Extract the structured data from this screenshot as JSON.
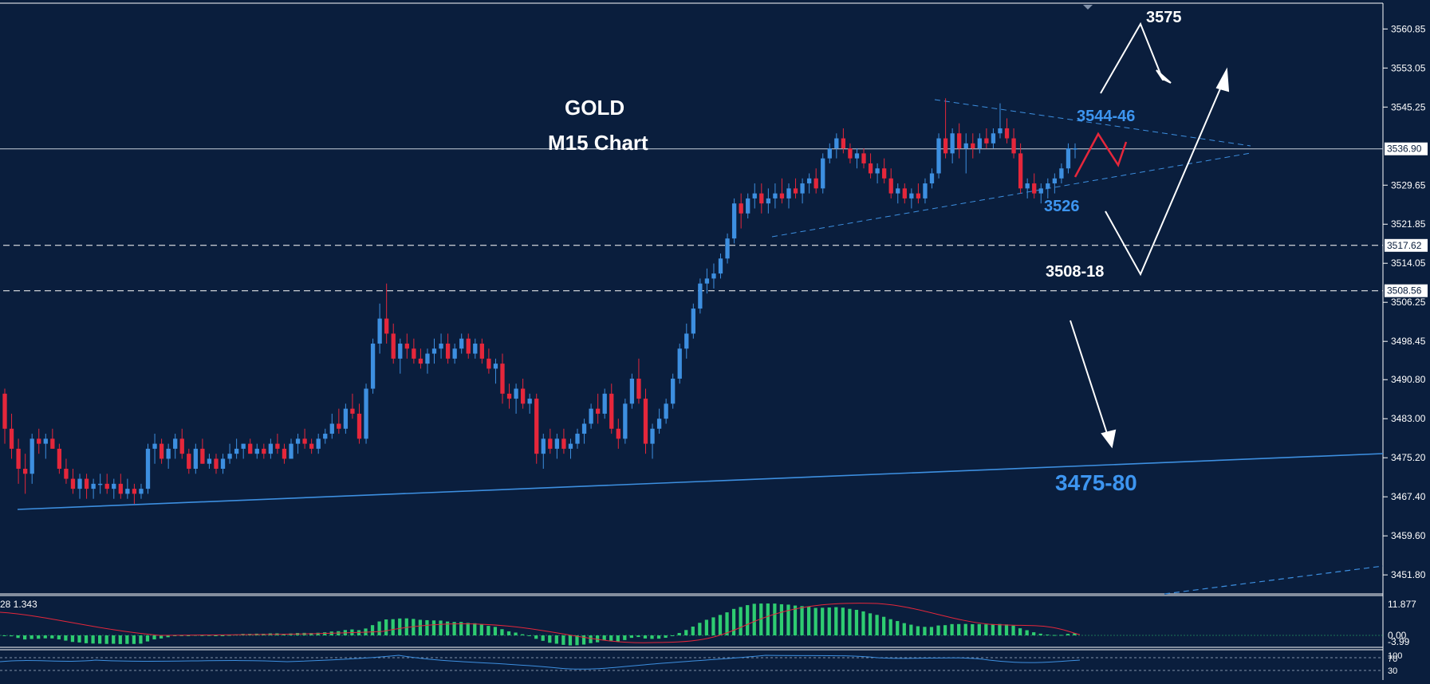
{
  "chart_data": {
    "type": "candlestick",
    "symbol": "GOLD",
    "timeframe": "M15 Chart",
    "ylim": [
      3448.0,
      3566.0
    ],
    "y_ticks": [
      "3560.85",
      "3553.05",
      "3545.25",
      "3529.65",
      "3521.85",
      "3514.05",
      "3506.25",
      "3498.45",
      "3490.80",
      "3483.00",
      "3475.20",
      "3467.40",
      "3459.60",
      "3451.80"
    ],
    "current_price": "3536.90",
    "levels": [
      {
        "label": "3517.62",
        "value": 3517.62
      },
      {
        "label": "3508.56",
        "value": 3508.56
      }
    ],
    "annotations": {
      "target_top": "3575",
      "resistance": "3544-46",
      "support": "3526",
      "pullback_zone": "3508-18",
      "major_support": "3475-80"
    },
    "candles": [
      [
        3488,
        3489,
        3478,
        3481
      ],
      [
        3481,
        3484,
        3475,
        3477
      ],
      [
        3477,
        3479,
        3470,
        3473
      ],
      [
        3473,
        3476,
        3468,
        3472
      ],
      [
        3472,
        3480,
        3470,
        3479
      ],
      [
        3479,
        3481,
        3476,
        3478
      ],
      [
        3478,
        3480,
        3475,
        3479
      ],
      [
        3479,
        3481,
        3477,
        3477
      ],
      [
        3477,
        3478,
        3472,
        3473
      ],
      [
        3473,
        3475,
        3470,
        3471
      ],
      [
        3471,
        3473,
        3468,
        3469
      ],
      [
        3469,
        3472,
        3467,
        3471
      ],
      [
        3471,
        3472,
        3467,
        3469
      ],
      [
        3469,
        3471,
        3467,
        3470
      ],
      [
        3470,
        3472,
        3468,
        3470
      ],
      [
        3470,
        3472,
        3468,
        3469
      ],
      [
        3469,
        3471,
        3467,
        3470
      ],
      [
        3470,
        3472,
        3467,
        3468
      ],
      [
        3468,
        3471,
        3467,
        3469
      ],
      [
        3469,
        3470,
        3466,
        3468
      ],
      [
        3468,
        3470,
        3467,
        3469
      ],
      [
        3469,
        3478,
        3468,
        3477
      ],
      [
        3477,
        3480,
        3474,
        3478
      ],
      [
        3478,
        3479,
        3474,
        3475
      ],
      [
        3475,
        3478,
        3473,
        3477
      ],
      [
        3477,
        3480,
        3475,
        3479
      ],
      [
        3479,
        3481,
        3475,
        3476
      ],
      [
        3476,
        3477,
        3472,
        3473
      ],
      [
        3473,
        3478,
        3472,
        3477
      ],
      [
        3477,
        3479,
        3474,
        3474
      ],
      [
        3474,
        3476,
        3473,
        3475
      ],
      [
        3475,
        3476,
        3472,
        3473
      ],
      [
        3473,
        3476,
        3472,
        3475
      ],
      [
        3475,
        3478,
        3474,
        3476
      ],
      [
        3476,
        3479,
        3475,
        3477
      ],
      [
        3477,
        3478,
        3475,
        3478
      ],
      [
        3478,
        3479,
        3476,
        3476
      ],
      [
        3476,
        3478,
        3475,
        3477
      ],
      [
        3477,
        3478,
        3475,
        3476
      ],
      [
        3476,
        3479,
        3475,
        3478
      ],
      [
        3478,
        3480,
        3476,
        3477
      ],
      [
        3477,
        3478,
        3474,
        3475
      ],
      [
        3475,
        3479,
        3475,
        3478
      ],
      [
        3478,
        3480,
        3476,
        3479
      ],
      [
        3479,
        3481,
        3477,
        3478
      ],
      [
        3478,
        3479,
        3476,
        3477
      ],
      [
        3477,
        3480,
        3476,
        3479
      ],
      [
        3479,
        3481,
        3478,
        3480
      ],
      [
        3480,
        3484,
        3479,
        3482
      ],
      [
        3482,
        3485,
        3480,
        3481
      ],
      [
        3481,
        3486,
        3480,
        3485
      ],
      [
        3485,
        3488,
        3483,
        3484
      ],
      [
        3484,
        3486,
        3478,
        3479
      ],
      [
        3479,
        3490,
        3478,
        3489
      ],
      [
        3489,
        3499,
        3488,
        3498
      ],
      [
        3498,
        3506,
        3496,
        3503
      ],
      [
        3503,
        3510,
        3498,
        3500
      ],
      [
        3500,
        3502,
        3494,
        3495
      ],
      [
        3495,
        3499,
        3492,
        3498
      ],
      [
        3498,
        3500,
        3495,
        3497
      ],
      [
        3497,
        3499,
        3494,
        3495
      ],
      [
        3495,
        3497,
        3493,
        3494
      ],
      [
        3494,
        3497,
        3492,
        3496
      ],
      [
        3496,
        3499,
        3494,
        3497
      ],
      [
        3497,
        3500,
        3495,
        3498
      ],
      [
        3498,
        3500,
        3494,
        3495
      ],
      [
        3495,
        3498,
        3494,
        3497
      ],
      [
        3497,
        3500,
        3496,
        3499
      ],
      [
        3499,
        3500,
        3495,
        3496
      ],
      [
        3496,
        3499,
        3495,
        3498
      ],
      [
        3498,
        3499,
        3494,
        3495
      ],
      [
        3495,
        3497,
        3492,
        3493
      ],
      [
        3493,
        3495,
        3490,
        3494
      ],
      [
        3494,
        3496,
        3486,
        3488
      ],
      [
        3488,
        3490,
        3485,
        3487
      ],
      [
        3487,
        3490,
        3484,
        3489
      ],
      [
        3489,
        3491,
        3485,
        3486
      ],
      [
        3486,
        3488,
        3484,
        3487
      ],
      [
        3487,
        3488,
        3474,
        3476
      ],
      [
        3476,
        3480,
        3473,
        3479
      ],
      [
        3479,
        3481,
        3476,
        3477
      ],
      [
        3477,
        3480,
        3475,
        3479
      ],
      [
        3479,
        3481,
        3476,
        3477
      ],
      [
        3477,
        3479,
        3475,
        3478
      ],
      [
        3478,
        3481,
        3477,
        3480
      ],
      [
        3480,
        3483,
        3478,
        3482
      ],
      [
        3482,
        3486,
        3481,
        3485
      ],
      [
        3485,
        3488,
        3482,
        3484
      ],
      [
        3484,
        3489,
        3483,
        3488
      ],
      [
        3488,
        3490,
        3480,
        3481
      ],
      [
        3481,
        3483,
        3477,
        3479
      ],
      [
        3479,
        3487,
        3478,
        3486
      ],
      [
        3486,
        3492,
        3485,
        3491
      ],
      [
        3491,
        3495,
        3486,
        3487
      ],
      [
        3487,
        3489,
        3476,
        3478
      ],
      [
        3478,
        3482,
        3475,
        3481
      ],
      [
        3481,
        3485,
        3480,
        3483
      ],
      [
        3483,
        3487,
        3482,
        3486
      ],
      [
        3486,
        3492,
        3485,
        3491
      ],
      [
        3491,
        3498,
        3490,
        3497
      ],
      [
        3497,
        3502,
        3495,
        3500
      ],
      [
        3500,
        3506,
        3499,
        3505
      ],
      [
        3505,
        3511,
        3504,
        3510
      ],
      [
        3510,
        3513,
        3508,
        3511
      ],
      [
        3511,
        3514,
        3509,
        3512
      ],
      [
        3512,
        3516,
        3511,
        3515
      ],
      [
        3515,
        3520,
        3514,
        3519
      ],
      [
        3519,
        3527,
        3518,
        3526
      ],
      [
        3526,
        3528,
        3521,
        3524
      ],
      [
        3524,
        3528,
        3523,
        3527
      ],
      [
        3527,
        3530,
        3525,
        3528
      ],
      [
        3528,
        3530,
        3524,
        3526
      ],
      [
        3526,
        3529,
        3524,
        3527
      ],
      [
        3527,
        3530,
        3525,
        3528
      ],
      [
        3528,
        3531,
        3526,
        3527
      ],
      [
        3527,
        3530,
        3525,
        3529
      ],
      [
        3529,
        3531,
        3527,
        3528
      ],
      [
        3528,
        3531,
        3526,
        3530
      ],
      [
        3530,
        3532,
        3528,
        3531
      ],
      [
        3531,
        3533,
        3528,
        3529
      ],
      [
        3529,
        3536,
        3528,
        3535
      ],
      [
        3535,
        3538,
        3534,
        3537
      ],
      [
        3537,
        3540,
        3535,
        3539
      ],
      [
        3539,
        3541,
        3536,
        3537
      ],
      [
        3537,
        3538,
        3534,
        3535
      ],
      [
        3535,
        3537,
        3533,
        3536
      ],
      [
        3536,
        3537,
        3533,
        3534
      ],
      [
        3534,
        3536,
        3531,
        3532
      ],
      [
        3532,
        3534,
        3530,
        3533
      ],
      [
        3533,
        3535,
        3530,
        3531
      ],
      [
        3531,
        3533,
        3527,
        3528
      ],
      [
        3528,
        3530,
        3526,
        3529
      ],
      [
        3529,
        3530,
        3526,
        3527
      ],
      [
        3527,
        3529,
        3525,
        3528
      ],
      [
        3528,
        3530,
        3526,
        3527
      ],
      [
        3527,
        3531,
        3526,
        3530
      ],
      [
        3530,
        3533,
        3529,
        3532
      ],
      [
        3532,
        3540,
        3531,
        3539
      ],
      [
        3539,
        3547,
        3535,
        3536
      ],
      [
        3536,
        3541,
        3534,
        3540
      ],
      [
        3540,
        3542,
        3535,
        3537
      ],
      [
        3537,
        3540,
        3532,
        3538
      ],
      [
        3538,
        3540,
        3535,
        3537
      ],
      [
        3537,
        3540,
        3536,
        3539
      ],
      [
        3539,
        3541,
        3537,
        3538
      ],
      [
        3538,
        3541,
        3537,
        3540
      ],
      [
        3540,
        3546,
        3539,
        3541
      ],
      [
        3541,
        3543,
        3538,
        3539
      ],
      [
        3539,
        3541,
        3535,
        3536
      ],
      [
        3536,
        3538,
        3528,
        3529
      ],
      [
        3529,
        3531,
        3527,
        3530
      ],
      [
        3530,
        3532,
        3527,
        3528
      ],
      [
        3528,
        3530,
        3526,
        3529
      ],
      [
        3529,
        3531,
        3527,
        3530
      ],
      [
        3530,
        3532,
        3528,
        3531
      ],
      [
        3531,
        3534,
        3530,
        3533
      ],
      [
        3533,
        3538,
        3532,
        3537
      ],
      [
        3537,
        3538,
        3535,
        3537
      ]
    ],
    "macd_label": "28 1.343",
    "macd_ticks": [
      "11.877",
      "0.00",
      "-3.99"
    ],
    "stoch_ticks": [
      "100",
      "70",
      "30"
    ]
  }
}
